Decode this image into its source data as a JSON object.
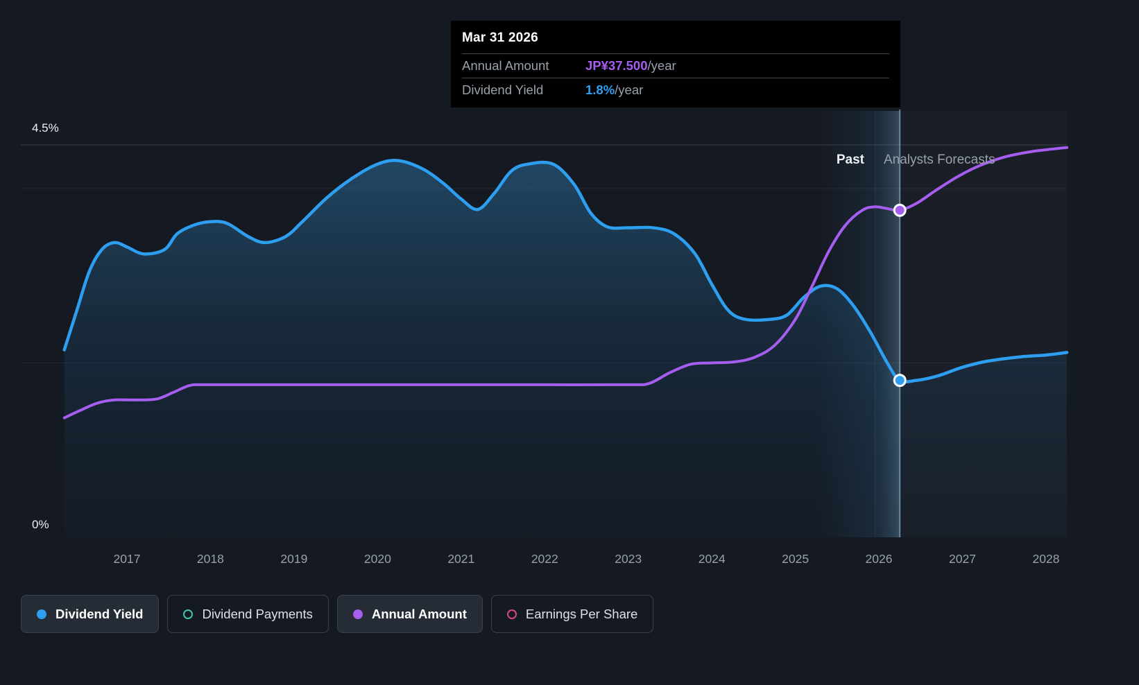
{
  "theme": {
    "background": "#151921",
    "tooltip_bg": "#000000",
    "text_muted": "#98a1ac",
    "text_bright": "#eef1f4",
    "pill_border": "#3a4150",
    "pill_active_bg": "#262c36",
    "grid_color": "#ffffff",
    "hover_line_color": "#a8c8e2"
  },
  "tooltip": {
    "date": "Mar 31 2026",
    "rows": [
      {
        "label": "Annual Amount",
        "value": "JP¥37.500",
        "suffix": "/year",
        "color": "#a55eef"
      },
      {
        "label": "Dividend Yield",
        "value": "1.8%",
        "suffix": "/year",
        "color": "#2e9ff0"
      }
    ]
  },
  "axis": {
    "y_top": "4.5%",
    "y_bottom": "0%",
    "x_ticks": [
      "2017",
      "2018",
      "2019",
      "2020",
      "2021",
      "2022",
      "2023",
      "2024",
      "2025",
      "2026",
      "2027",
      "2028"
    ]
  },
  "annotations": {
    "past": "Past",
    "forecast": "Analysts Forecasts"
  },
  "legend": {
    "items": [
      {
        "label": "Dividend Yield",
        "color": "#2e9ff0",
        "style": "filled",
        "active": true
      },
      {
        "label": "Dividend Payments",
        "color": "#45c4b0",
        "style": "outline",
        "active": false
      },
      {
        "label": "Annual Amount",
        "color": "#a55eef",
        "style": "filled",
        "active": true
      },
      {
        "label": "Earnings Per Share",
        "color": "#dc4488",
        "style": "outline",
        "active": false
      }
    ]
  },
  "chart_data": {
    "type": "line",
    "title": "Dividend yield and annual dividend amount, past and analyst forecasts",
    "x_range": [
      2016.2,
      2028.42
    ],
    "ylim": [
      0,
      4.5
    ],
    "y_unit": "%",
    "yen_per_percent": 10,
    "divider_x": 2025.95,
    "hover_x": 2026.25,
    "gridlines_percent": [
      4.5,
      4.0,
      2.0
    ],
    "legend_position": "bottom",
    "series": [
      {
        "name": "Dividend Yield",
        "unit": "%",
        "color": "#2e9ff0",
        "area": true,
        "points": [
          [
            2016.25,
            2.15
          ],
          [
            2016.4,
            2.6
          ],
          [
            2016.55,
            3.05
          ],
          [
            2016.7,
            3.3
          ],
          [
            2016.85,
            3.38
          ],
          [
            2017.0,
            3.33
          ],
          [
            2017.2,
            3.25
          ],
          [
            2017.45,
            3.3
          ],
          [
            2017.6,
            3.48
          ],
          [
            2017.8,
            3.58
          ],
          [
            2018.0,
            3.62
          ],
          [
            2018.2,
            3.6
          ],
          [
            2018.45,
            3.45
          ],
          [
            2018.65,
            3.38
          ],
          [
            2018.9,
            3.45
          ],
          [
            2019.1,
            3.62
          ],
          [
            2019.4,
            3.9
          ],
          [
            2019.7,
            4.12
          ],
          [
            2020.0,
            4.28
          ],
          [
            2020.25,
            4.32
          ],
          [
            2020.55,
            4.22
          ],
          [
            2020.8,
            4.05
          ],
          [
            2021.0,
            3.88
          ],
          [
            2021.2,
            3.76
          ],
          [
            2021.4,
            3.95
          ],
          [
            2021.6,
            4.2
          ],
          [
            2021.8,
            4.28
          ],
          [
            2022.1,
            4.28
          ],
          [
            2022.35,
            4.05
          ],
          [
            2022.55,
            3.72
          ],
          [
            2022.75,
            3.56
          ],
          [
            2023.0,
            3.55
          ],
          [
            2023.3,
            3.55
          ],
          [
            2023.55,
            3.48
          ],
          [
            2023.8,
            3.25
          ],
          [
            2024.0,
            2.9
          ],
          [
            2024.2,
            2.6
          ],
          [
            2024.4,
            2.5
          ],
          [
            2024.7,
            2.5
          ],
          [
            2024.9,
            2.55
          ],
          [
            2025.1,
            2.75
          ],
          [
            2025.3,
            2.88
          ],
          [
            2025.5,
            2.85
          ],
          [
            2025.7,
            2.65
          ],
          [
            2025.9,
            2.35
          ],
          [
            2026.1,
            2.0
          ],
          [
            2026.25,
            1.8
          ],
          [
            2026.45,
            1.8
          ],
          [
            2026.7,
            1.85
          ],
          [
            2027.0,
            1.95
          ],
          [
            2027.3,
            2.02
          ],
          [
            2027.7,
            2.07
          ],
          [
            2028.0,
            2.09
          ],
          [
            2028.25,
            2.12
          ]
        ]
      },
      {
        "name": "Annual Amount",
        "unit": "JPY/year",
        "color": "#a55eef",
        "area": false,
        "points": [
          [
            2016.25,
            13.7
          ],
          [
            2016.45,
            14.6
          ],
          [
            2016.65,
            15.4
          ],
          [
            2016.85,
            15.75
          ],
          [
            2017.1,
            15.75
          ],
          [
            2017.35,
            15.85
          ],
          [
            2017.55,
            16.6
          ],
          [
            2017.75,
            17.4
          ],
          [
            2017.95,
            17.5
          ],
          [
            2019.0,
            17.5
          ],
          [
            2020.0,
            17.5
          ],
          [
            2021.0,
            17.5
          ],
          [
            2022.0,
            17.5
          ],
          [
            2023.0,
            17.5
          ],
          [
            2023.25,
            17.65
          ],
          [
            2023.5,
            18.9
          ],
          [
            2023.75,
            19.85
          ],
          [
            2024.0,
            20.0
          ],
          [
            2024.25,
            20.1
          ],
          [
            2024.5,
            20.6
          ],
          [
            2024.75,
            22.0
          ],
          [
            2025.0,
            25.0
          ],
          [
            2025.2,
            28.8
          ],
          [
            2025.4,
            32.8
          ],
          [
            2025.6,
            35.8
          ],
          [
            2025.8,
            37.5
          ],
          [
            2025.95,
            37.9
          ],
          [
            2026.1,
            37.7
          ],
          [
            2026.25,
            37.5
          ],
          [
            2026.45,
            38.3
          ],
          [
            2026.7,
            39.9
          ],
          [
            2026.95,
            41.4
          ],
          [
            2027.2,
            42.6
          ],
          [
            2027.5,
            43.6
          ],
          [
            2027.8,
            44.2
          ],
          [
            2028.05,
            44.5
          ],
          [
            2028.25,
            44.7
          ]
        ]
      }
    ],
    "markers": [
      {
        "series": "Annual Amount",
        "x": 2026.25,
        "value": 37.5,
        "unit": "JPY/year",
        "color": "#a55eef"
      },
      {
        "series": "Dividend Yield",
        "x": 2026.25,
        "value": 1.8,
        "unit": "%",
        "color": "#2e9ff0"
      }
    ]
  }
}
